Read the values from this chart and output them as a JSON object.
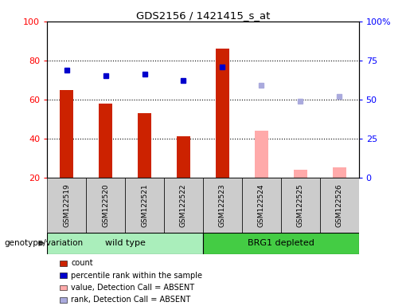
{
  "title": "GDS2156 / 1421415_s_at",
  "samples": [
    "GSM122519",
    "GSM122520",
    "GSM122521",
    "GSM122522",
    "GSM122523",
    "GSM122524",
    "GSM122525",
    "GSM122526"
  ],
  "count_values": [
    65,
    58,
    53,
    41,
    86,
    null,
    null,
    null
  ],
  "rank_values": [
    69,
    65,
    66,
    62,
    71,
    null,
    null,
    null
  ],
  "absent_count_values": [
    null,
    null,
    null,
    null,
    null,
    44,
    24,
    25
  ],
  "absent_rank_values": [
    null,
    null,
    null,
    null,
    null,
    59,
    49,
    52
  ],
  "bar_color_present": "#cc2200",
  "bar_color_absent": "#ffaaaa",
  "dot_color_present": "#0000cc",
  "dot_color_absent": "#aaaadd",
  "ylim_left": [
    20,
    100
  ],
  "ylim_right": [
    0,
    100
  ],
  "left_ticks": [
    20,
    40,
    60,
    80,
    100
  ],
  "right_ticks": [
    0,
    25,
    50,
    75,
    100
  ],
  "right_tick_labels": [
    "0",
    "25",
    "50",
    "75",
    "100%"
  ],
  "grid_lines": [
    40,
    60,
    80
  ],
  "sample_box_color": "#cccccc",
  "wt_color": "#aaeebb",
  "brg_color": "#44cc44",
  "legend_items": [
    {
      "label": "count",
      "color": "#cc2200"
    },
    {
      "label": "percentile rank within the sample",
      "color": "#0000cc"
    },
    {
      "label": "value, Detection Call = ABSENT",
      "color": "#ffaaaa"
    },
    {
      "label": "rank, Detection Call = ABSENT",
      "color": "#aaaadd"
    }
  ],
  "genotype_label": "genotype/variation"
}
